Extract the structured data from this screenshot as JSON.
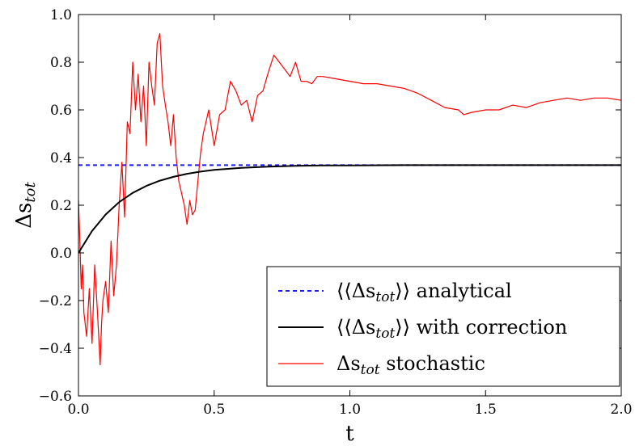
{
  "chart_data": {
    "type": "line",
    "xlabel": "t",
    "ylabel": "Δs_tot",
    "ylabel_parts": {
      "base": "Δs",
      "sub": "tot"
    },
    "xlim": [
      0.0,
      2.0
    ],
    "ylim": [
      -0.6,
      1.0
    ],
    "xticks": [
      "0.0",
      "0.5",
      "1.0",
      "1.5",
      "2.0"
    ],
    "xtick_values": [
      0.0,
      0.5,
      1.0,
      1.5,
      2.0
    ],
    "yticks": [
      "−0.6",
      "−0.4",
      "−0.2",
      "0.0",
      "0.2",
      "0.4",
      "0.6",
      "0.8",
      "1.0"
    ],
    "ytick_values": [
      -0.6,
      -0.4,
      -0.2,
      0.0,
      0.2,
      0.4,
      0.6,
      0.8,
      1.0
    ],
    "grid": false,
    "legend_position": "bottom-right",
    "series": [
      {
        "name": "⟨⟨Δs_tot⟩⟩ analytical",
        "legend_parts": {
          "prefix": "⟨⟨Δs",
          "sub": "tot",
          "suffix": "⟩⟩ analytical"
        },
        "style": "dashed",
        "color": "#1a1aff",
        "x": [
          0.0,
          2.0
        ],
        "y": [
          0.368,
          0.368
        ]
      },
      {
        "name": "⟨⟨Δs_tot⟩⟩ with correction",
        "legend_parts": {
          "prefix": "⟨⟨Δs",
          "sub": "tot",
          "suffix": "⟩⟩ with correction"
        },
        "style": "solid",
        "color": "#000000",
        "x": [
          0.0,
          0.05,
          0.1,
          0.15,
          0.2,
          0.25,
          0.3,
          0.35,
          0.4,
          0.45,
          0.5,
          0.6,
          0.7,
          0.8,
          0.9,
          1.0,
          1.2,
          1.4,
          1.6,
          1.8,
          2.0
        ],
        "y": [
          0.0,
          0.092,
          0.161,
          0.213,
          0.252,
          0.281,
          0.303,
          0.319,
          0.332,
          0.341,
          0.348,
          0.357,
          0.362,
          0.365,
          0.367,
          0.367,
          0.368,
          0.368,
          0.368,
          0.368,
          0.368
        ]
      },
      {
        "name": "Δs_tot stochastic",
        "legend_parts": {
          "prefix": "Δs",
          "sub": "tot",
          "suffix": " stochastic"
        },
        "style": "solid",
        "color": "#ff0000",
        "x": [
          0.0,
          0.005,
          0.01,
          0.015,
          0.02,
          0.03,
          0.04,
          0.05,
          0.06,
          0.07,
          0.08,
          0.085,
          0.09,
          0.1,
          0.11,
          0.12,
          0.13,
          0.14,
          0.15,
          0.16,
          0.17,
          0.18,
          0.19,
          0.2,
          0.21,
          0.22,
          0.23,
          0.24,
          0.25,
          0.26,
          0.27,
          0.28,
          0.29,
          0.3,
          0.31,
          0.32,
          0.33,
          0.34,
          0.35,
          0.36,
          0.37,
          0.38,
          0.39,
          0.4,
          0.41,
          0.42,
          0.43,
          0.44,
          0.45,
          0.46,
          0.47,
          0.48,
          0.5,
          0.52,
          0.54,
          0.56,
          0.58,
          0.6,
          0.62,
          0.64,
          0.66,
          0.68,
          0.7,
          0.72,
          0.74,
          0.76,
          0.78,
          0.8,
          0.82,
          0.84,
          0.86,
          0.88,
          0.9,
          0.95,
          1.0,
          1.05,
          1.1,
          1.15,
          1.2,
          1.25,
          1.3,
          1.35,
          1.4,
          1.42,
          1.45,
          1.5,
          1.55,
          1.6,
          1.65,
          1.7,
          1.75,
          1.8,
          1.85,
          1.9,
          1.95,
          2.0
        ],
        "y": [
          0.22,
          0.05,
          -0.15,
          -0.05,
          -0.25,
          -0.35,
          -0.15,
          -0.38,
          -0.05,
          -0.25,
          -0.47,
          -0.3,
          -0.2,
          -0.12,
          -0.25,
          0.05,
          -0.18,
          -0.05,
          0.2,
          0.38,
          0.15,
          0.55,
          0.5,
          0.8,
          0.6,
          0.75,
          0.55,
          0.7,
          0.45,
          0.8,
          0.7,
          0.62,
          0.88,
          0.92,
          0.7,
          0.62,
          0.55,
          0.45,
          0.58,
          0.4,
          0.3,
          0.25,
          0.2,
          0.12,
          0.22,
          0.16,
          0.18,
          0.3,
          0.42,
          0.5,
          0.55,
          0.6,
          0.45,
          0.58,
          0.6,
          0.72,
          0.68,
          0.62,
          0.64,
          0.55,
          0.66,
          0.68,
          0.76,
          0.83,
          0.8,
          0.77,
          0.74,
          0.8,
          0.72,
          0.72,
          0.71,
          0.74,
          0.74,
          0.73,
          0.72,
          0.71,
          0.71,
          0.7,
          0.69,
          0.67,
          0.64,
          0.61,
          0.6,
          0.58,
          0.59,
          0.6,
          0.6,
          0.62,
          0.61,
          0.63,
          0.64,
          0.65,
          0.64,
          0.65,
          0.65,
          0.64
        ]
      }
    ]
  }
}
